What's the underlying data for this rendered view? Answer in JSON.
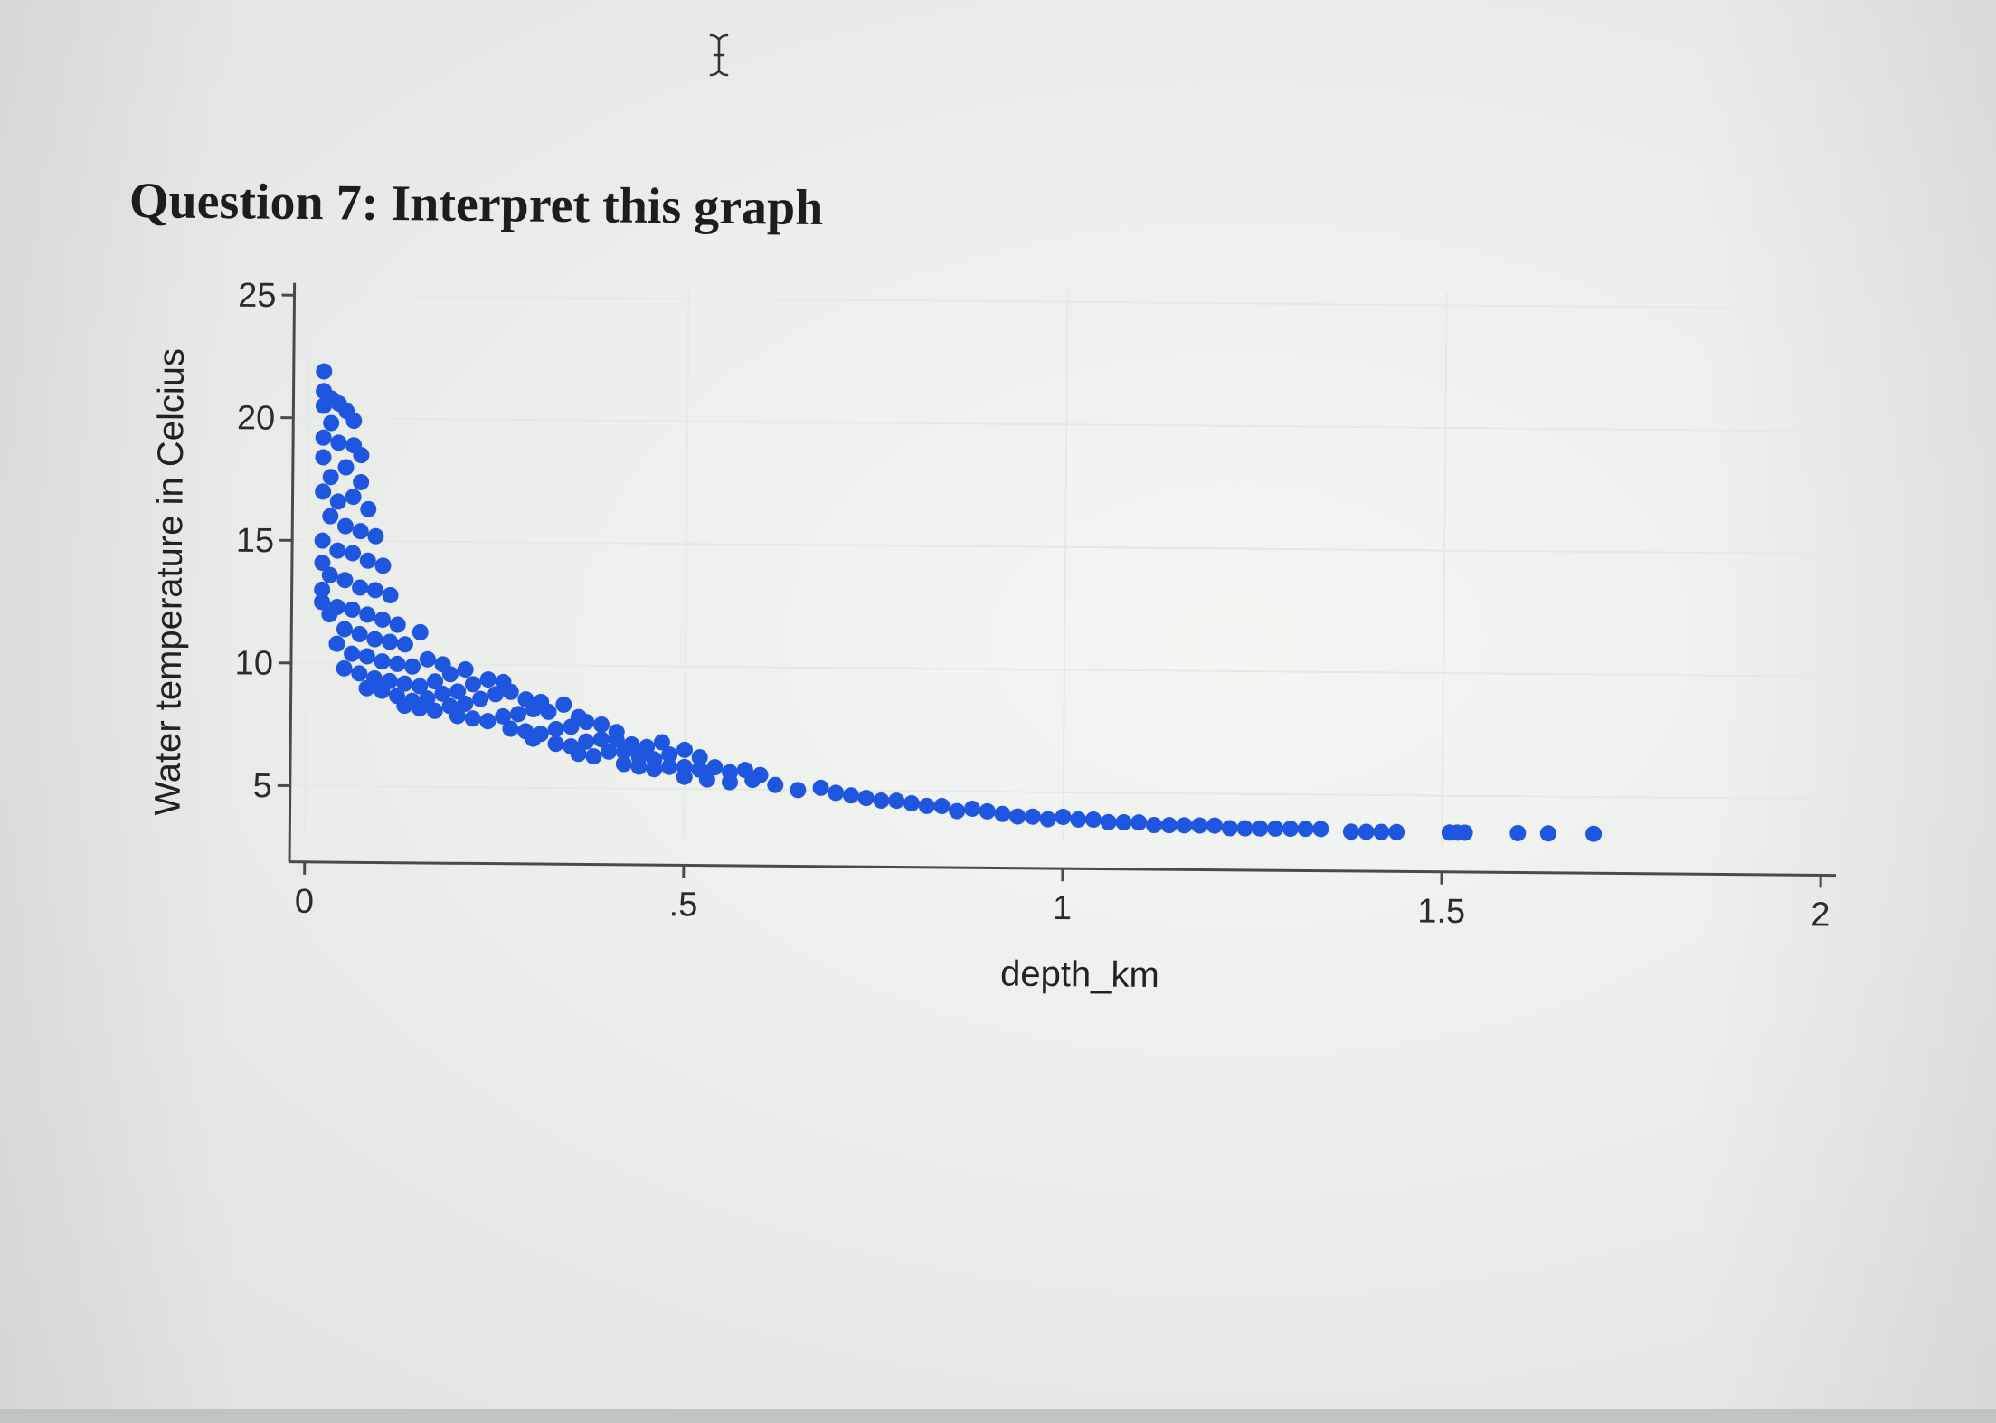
{
  "question": {
    "title": "Question 7: Interpret this graph"
  },
  "cursor": {
    "icon": "text-cursor-icon"
  },
  "colors": {
    "points": "#1f56e0",
    "axis": "#4a4a4a",
    "grid": "#e6e8e6"
  },
  "chart_data": {
    "type": "scatter",
    "title": "",
    "xlabel": "depth_km",
    "ylabel": "Water temperature in Celcius",
    "xlim": [
      -0.02,
      2.02
    ],
    "ylim": [
      3,
      25.5
    ],
    "xticks": [
      {
        "value": 0,
        "label": "0"
      },
      {
        "value": 0.5,
        "label": ".5"
      },
      {
        "value": 1,
        "label": "1"
      },
      {
        "value": 1.5,
        "label": "1.5"
      },
      {
        "value": 2,
        "label": "2"
      }
    ],
    "yticks": [
      {
        "value": 5,
        "label": "5"
      },
      {
        "value": 10,
        "label": "10"
      },
      {
        "value": 15,
        "label": "15"
      },
      {
        "value": 20,
        "label": "20"
      },
      {
        "value": 25,
        "label": "25"
      }
    ],
    "grid": true,
    "legend": "none",
    "series": [
      {
        "points": [
          [
            0.02,
            21.9
          ],
          [
            0.02,
            21.1
          ],
          [
            0.03,
            20.8
          ],
          [
            0.02,
            20.5
          ],
          [
            0.04,
            20.6
          ],
          [
            0.05,
            20.3
          ],
          [
            0.03,
            19.8
          ],
          [
            0.06,
            19.9
          ],
          [
            0.02,
            19.2
          ],
          [
            0.04,
            19.0
          ],
          [
            0.06,
            18.9
          ],
          [
            0.07,
            18.5
          ],
          [
            0.02,
            18.4
          ],
          [
            0.05,
            18.0
          ],
          [
            0.03,
            17.6
          ],
          [
            0.07,
            17.4
          ],
          [
            0.02,
            17.0
          ],
          [
            0.04,
            16.6
          ],
          [
            0.06,
            16.8
          ],
          [
            0.08,
            16.3
          ],
          [
            0.03,
            16.0
          ],
          [
            0.05,
            15.6
          ],
          [
            0.07,
            15.4
          ],
          [
            0.09,
            15.2
          ],
          [
            0.02,
            15.0
          ],
          [
            0.04,
            14.6
          ],
          [
            0.06,
            14.5
          ],
          [
            0.08,
            14.2
          ],
          [
            0.1,
            14.0
          ],
          [
            0.02,
            14.1
          ],
          [
            0.03,
            13.6
          ],
          [
            0.05,
            13.4
          ],
          [
            0.07,
            13.1
          ],
          [
            0.09,
            13.0
          ],
          [
            0.11,
            12.8
          ],
          [
            0.02,
            13.0
          ],
          [
            0.02,
            12.5
          ],
          [
            0.04,
            12.3
          ],
          [
            0.06,
            12.2
          ],
          [
            0.08,
            12.0
          ],
          [
            0.1,
            11.8
          ],
          [
            0.12,
            11.6
          ],
          [
            0.03,
            12.0
          ],
          [
            0.05,
            11.4
          ],
          [
            0.07,
            11.2
          ],
          [
            0.09,
            11.0
          ],
          [
            0.11,
            10.9
          ],
          [
            0.13,
            10.8
          ],
          [
            0.15,
            11.3
          ],
          [
            0.04,
            10.8
          ],
          [
            0.06,
            10.4
          ],
          [
            0.08,
            10.3
          ],
          [
            0.1,
            10.1
          ],
          [
            0.12,
            10.0
          ],
          [
            0.14,
            9.9
          ],
          [
            0.16,
            10.2
          ],
          [
            0.18,
            10.0
          ],
          [
            0.05,
            9.8
          ],
          [
            0.07,
            9.6
          ],
          [
            0.09,
            9.4
          ],
          [
            0.11,
            9.3
          ],
          [
            0.13,
            9.2
          ],
          [
            0.15,
            9.1
          ],
          [
            0.17,
            9.3
          ],
          [
            0.19,
            9.6
          ],
          [
            0.21,
            9.8
          ],
          [
            0.08,
            9.0
          ],
          [
            0.1,
            8.9
          ],
          [
            0.12,
            8.7
          ],
          [
            0.14,
            8.5
          ],
          [
            0.16,
            8.6
          ],
          [
            0.18,
            8.8
          ],
          [
            0.2,
            8.9
          ],
          [
            0.22,
            9.2
          ],
          [
            0.24,
            9.4
          ],
          [
            0.26,
            9.3
          ],
          [
            0.13,
            8.3
          ],
          [
            0.15,
            8.2
          ],
          [
            0.17,
            8.1
          ],
          [
            0.19,
            8.3
          ],
          [
            0.21,
            8.4
          ],
          [
            0.23,
            8.6
          ],
          [
            0.25,
            8.8
          ],
          [
            0.27,
            8.9
          ],
          [
            0.29,
            8.6
          ],
          [
            0.31,
            8.5
          ],
          [
            0.2,
            7.9
          ],
          [
            0.22,
            7.8
          ],
          [
            0.24,
            7.7
          ],
          [
            0.26,
            7.9
          ],
          [
            0.28,
            8.0
          ],
          [
            0.3,
            8.2
          ],
          [
            0.32,
            8.1
          ],
          [
            0.34,
            8.4
          ],
          [
            0.36,
            7.9
          ],
          [
            0.27,
            7.4
          ],
          [
            0.29,
            7.3
          ],
          [
            0.31,
            7.2
          ],
          [
            0.33,
            7.4
          ],
          [
            0.35,
            7.5
          ],
          [
            0.37,
            7.7
          ],
          [
            0.39,
            7.6
          ],
          [
            0.41,
            7.3
          ],
          [
            0.3,
            7.0
          ],
          [
            0.33,
            6.8
          ],
          [
            0.35,
            6.7
          ],
          [
            0.37,
            6.9
          ],
          [
            0.39,
            7.0
          ],
          [
            0.41,
            7.0
          ],
          [
            0.43,
            6.8
          ],
          [
            0.45,
            6.7
          ],
          [
            0.47,
            6.9
          ],
          [
            0.36,
            6.4
          ],
          [
            0.38,
            6.3
          ],
          [
            0.4,
            6.5
          ],
          [
            0.42,
            6.5
          ],
          [
            0.44,
            6.3
          ],
          [
            0.46,
            6.2
          ],
          [
            0.48,
            6.4
          ],
          [
            0.5,
            6.6
          ],
          [
            0.52,
            6.3
          ],
          [
            0.42,
            6.0
          ],
          [
            0.44,
            5.9
          ],
          [
            0.46,
            5.8
          ],
          [
            0.48,
            5.9
          ],
          [
            0.5,
            5.9
          ],
          [
            0.52,
            5.8
          ],
          [
            0.54,
            5.9
          ],
          [
            0.56,
            5.7
          ],
          [
            0.58,
            5.8
          ],
          [
            0.6,
            5.6
          ],
          [
            0.5,
            5.5
          ],
          [
            0.53,
            5.4
          ],
          [
            0.56,
            5.3
          ],
          [
            0.59,
            5.4
          ],
          [
            0.62,
            5.2
          ],
          [
            0.65,
            5.0
          ],
          [
            0.68,
            5.1
          ],
          [
            0.7,
            4.9
          ],
          [
            0.72,
            4.8
          ],
          [
            0.74,
            4.7
          ],
          [
            0.76,
            4.6
          ],
          [
            0.78,
            4.6
          ],
          [
            0.8,
            4.5
          ],
          [
            0.82,
            4.4
          ],
          [
            0.84,
            4.4
          ],
          [
            0.86,
            4.2
          ],
          [
            0.88,
            4.3
          ],
          [
            0.9,
            4.2
          ],
          [
            0.92,
            4.1
          ],
          [
            0.94,
            4.0
          ],
          [
            0.96,
            4.0
          ],
          [
            0.98,
            3.9
          ],
          [
            1.0,
            4.0
          ],
          [
            1.02,
            3.9
          ],
          [
            1.04,
            3.9
          ],
          [
            1.06,
            3.8
          ],
          [
            1.08,
            3.8
          ],
          [
            1.1,
            3.8
          ],
          [
            1.12,
            3.7
          ],
          [
            1.14,
            3.7
          ],
          [
            1.16,
            3.7
          ],
          [
            1.18,
            3.7
          ],
          [
            1.2,
            3.7
          ],
          [
            1.22,
            3.6
          ],
          [
            1.24,
            3.6
          ],
          [
            1.26,
            3.6
          ],
          [
            1.28,
            3.6
          ],
          [
            1.3,
            3.6
          ],
          [
            1.32,
            3.6
          ],
          [
            1.34,
            3.6
          ],
          [
            1.38,
            3.5
          ],
          [
            1.4,
            3.5
          ],
          [
            1.42,
            3.5
          ],
          [
            1.44,
            3.5
          ],
          [
            1.51,
            3.5
          ],
          [
            1.52,
            3.5
          ],
          [
            1.53,
            3.5
          ],
          [
            1.6,
            3.5
          ],
          [
            1.64,
            3.5
          ],
          [
            1.7,
            3.5
          ]
        ]
      }
    ]
  }
}
